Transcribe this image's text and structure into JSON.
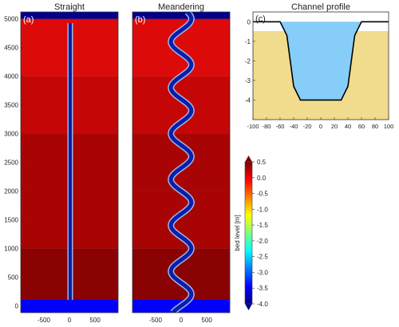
{
  "panels": {
    "a": {
      "title": "Straight",
      "letter": "(a)"
    },
    "b": {
      "title": "Meandering",
      "letter": "(b)"
    },
    "c": {
      "title": "Channel profile",
      "letter": "(c)"
    }
  },
  "colors": {
    "frame_blue": "#0000ff",
    "dark_blue": "#00008b",
    "channel_outline": "#9ab6e6",
    "meander_blue": "#0b1ea8",
    "bank_sand": "#f0dc8c",
    "water": "#87cdf9",
    "bed_line": "#000000",
    "bands": [
      "#dd0a0a",
      "#c40606",
      "#a90404",
      "#8a0202"
    ]
  },
  "chart_data": [
    {
      "type": "heatmap",
      "title": "Straight",
      "panel": "(a)",
      "xlim": [
        -950,
        950
      ],
      "ylim": [
        -120,
        5120
      ],
      "yticks": [
        0,
        500,
        1000,
        1500,
        2000,
        2500,
        3000,
        3500,
        4000,
        4500,
        5000
      ],
      "xticks": [
        -500,
        0,
        500
      ],
      "channel": {
        "shape": "straight",
        "half_width": 40
      },
      "bed_level_bands": [
        {
          "y_from": 4000,
          "y_to": 5000,
          "value": 0.3
        },
        {
          "y_from": 3000,
          "y_to": 4000,
          "value": 0.22
        },
        {
          "y_from": 1000,
          "y_to": 3000,
          "value": 0.1
        },
        {
          "y_from": 0,
          "y_to": 1000,
          "value": -0.05
        }
      ]
    },
    {
      "type": "heatmap",
      "title": "Meandering",
      "panel": "(b)",
      "xlim": [
        -950,
        950
      ],
      "ylim": [
        -120,
        5120
      ],
      "xticks": [
        -500,
        0,
        500
      ],
      "channel": {
        "shape": "sinusoidal",
        "amplitude": 200,
        "wavelength": 800,
        "half_width": 40
      },
      "bed_level_bands": [
        {
          "y_from": 4000,
          "y_to": 5000,
          "value": 0.3
        },
        {
          "y_from": 3000,
          "y_to": 4000,
          "value": 0.22
        },
        {
          "y_from": 2000,
          "y_to": 3000,
          "value": 0.15
        },
        {
          "y_from": 1000,
          "y_to": 2000,
          "value": 0.08
        },
        {
          "y_from": 0,
          "y_to": 1000,
          "value": 0.0
        }
      ]
    },
    {
      "type": "area",
      "title": "Channel profile",
      "panel": "(c)",
      "xlim": [
        -100,
        100
      ],
      "ylim": [
        -5,
        0.5
      ],
      "xticks": [
        -100,
        -80,
        -60,
        -40,
        -20,
        0,
        20,
        40,
        60,
        80,
        100
      ],
      "yticks": [
        0,
        -1,
        -2,
        -3,
        -4
      ],
      "x": [
        -100,
        -60,
        -50,
        -40,
        -30,
        30,
        40,
        50,
        60,
        100
      ],
      "y": [
        0,
        0,
        -0.7,
        -3.3,
        -4,
        -4,
        -3.3,
        -0.7,
        0,
        0
      ]
    },
    {
      "type": "colorbar",
      "label": "bed level [m]",
      "range": [
        -4.0,
        0.5
      ],
      "ticks": [
        "0.5",
        "0.0",
        "-0.5",
        "-1.0",
        "-1.5",
        "-2.0",
        "-2.5",
        "-3.0",
        "-3.5",
        "-4.0"
      ]
    }
  ]
}
